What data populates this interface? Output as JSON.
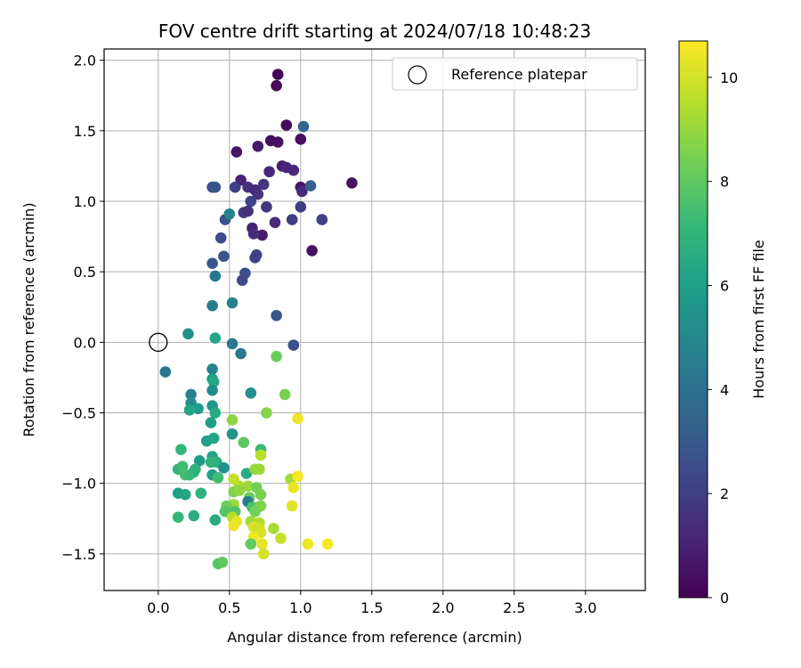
{
  "chart_data": {
    "type": "scatter",
    "title": "FOV centre drift starting at 2024/07/18 10:48:23",
    "xlabel": "Angular distance from reference (arcmin)",
    "ylabel": "Rotation from reference (arcmin)",
    "xlim": [
      -0.38,
      3.42
    ],
    "ylim": [
      -1.76,
      2.08
    ],
    "xticks": [
      0.0,
      0.5,
      1.0,
      1.5,
      2.0,
      2.5,
      3.0
    ],
    "xtick_labels": [
      "0.0",
      "0.5",
      "1.0",
      "1.5",
      "2.0",
      "2.5",
      "3.0"
    ],
    "yticks": [
      -1.5,
      -1.0,
      -0.5,
      0.0,
      0.5,
      1.0,
      1.5,
      2.0
    ],
    "ytick_labels": [
      "−1.5",
      "−1.0",
      "−0.5",
      "0.0",
      "0.5",
      "1.0",
      "1.5",
      "2.0"
    ],
    "grid": true,
    "legend": {
      "placement": "top-right",
      "entries": [
        "Reference platepar"
      ]
    },
    "reference_point": {
      "x": 0.0,
      "y": 0.0
    },
    "colorbar": {
      "label": "Hours from first FF file",
      "colormap": "viridis",
      "range": [
        0,
        10.7
      ],
      "ticks": [
        0,
        2,
        4,
        6,
        8,
        10
      ],
      "tick_labels": [
        "0",
        "2",
        "4",
        "6",
        "8",
        "10"
      ],
      "colors": [
        "#440154",
        "#482878",
        "#3e4989",
        "#31688e",
        "#26828e",
        "#1f9e89",
        "#35b779",
        "#6ece58",
        "#b5de2b",
        "#fde725"
      ]
    },
    "series": [
      {
        "points": [
          [
            0.84,
            1.9,
            0.1
          ],
          [
            0.83,
            1.82,
            0.2
          ],
          [
            0.9,
            1.54,
            0.3
          ],
          [
            1.0,
            1.44,
            0.4
          ],
          [
            0.79,
            1.43,
            0.3
          ],
          [
            0.84,
            1.42,
            0.5
          ],
          [
            0.7,
            1.39,
            0.8
          ],
          [
            0.55,
            1.35,
            0.6
          ],
          [
            0.87,
            1.25,
            0.9
          ],
          [
            0.9,
            1.24,
            1.1
          ],
          [
            0.95,
            1.22,
            1.3
          ],
          [
            0.78,
            1.21,
            1.2
          ],
          [
            1.36,
            1.13,
            0.5
          ],
          [
            0.58,
            1.15,
            1.0
          ],
          [
            0.74,
            1.12,
            1.7
          ],
          [
            1.0,
            1.1,
            0.6
          ],
          [
            0.63,
            1.1,
            1.4
          ],
          [
            0.68,
            1.08,
            1.2
          ],
          [
            0.54,
            1.1,
            2.0
          ],
          [
            0.38,
            1.1,
            2.5
          ],
          [
            0.4,
            1.1,
            2.8
          ],
          [
            1.01,
            1.07,
            1.3
          ],
          [
            0.7,
            1.05,
            1.6
          ],
          [
            0.76,
            0.96,
            1.7
          ],
          [
            1.0,
            0.96,
            2.0
          ],
          [
            0.65,
            1.0,
            2.2
          ],
          [
            0.6,
            0.92,
            1.8
          ],
          [
            0.63,
            0.93,
            1.5
          ],
          [
            0.94,
            0.87,
            1.9
          ],
          [
            1.15,
            0.87,
            2.1
          ],
          [
            0.82,
            0.85,
            1.3
          ],
          [
            0.66,
            0.81,
            1.0
          ],
          [
            0.73,
            0.76,
            0.8
          ],
          [
            0.67,
            0.77,
            1.4
          ],
          [
            1.08,
            0.65,
            0.5
          ],
          [
            0.69,
            0.62,
            2.2
          ],
          [
            0.68,
            0.6,
            2.1
          ],
          [
            0.61,
            0.49,
            2.6
          ],
          [
            0.59,
            0.44,
            2.4
          ],
          [
            0.46,
            0.61,
            2.8
          ],
          [
            0.44,
            0.74,
            2.5
          ],
          [
            0.38,
            0.56,
            2.9
          ],
          [
            0.47,
            0.87,
            2.7
          ],
          [
            0.5,
            0.91,
            4.8
          ],
          [
            1.02,
            1.53,
            3.5
          ],
          [
            1.07,
            1.11,
            3.3
          ],
          [
            0.83,
            0.19,
            2.9
          ],
          [
            0.4,
            0.47,
            4.2
          ],
          [
            0.38,
            0.26,
            4.5
          ],
          [
            0.52,
            0.28,
            4.8
          ],
          [
            0.95,
            -0.02,
            2.6
          ],
          [
            0.52,
            -0.01,
            4.4
          ],
          [
            0.58,
            -0.08,
            4.3
          ],
          [
            0.4,
            0.03,
            6.3
          ],
          [
            0.21,
            0.06,
            5.4
          ],
          [
            0.05,
            -0.21,
            4.3
          ],
          [
            0.38,
            -0.19,
            4.8
          ],
          [
            0.38,
            -0.26,
            6.0
          ],
          [
            0.39,
            -0.28,
            6.4
          ],
          [
            0.38,
            -0.34,
            5.2
          ],
          [
            0.23,
            -0.37,
            4.7
          ],
          [
            0.23,
            -0.43,
            5.2
          ],
          [
            0.38,
            -0.45,
            5.6
          ],
          [
            0.28,
            -0.47,
            5.9
          ],
          [
            0.22,
            -0.48,
            6.3
          ],
          [
            0.4,
            -0.5,
            6.5
          ],
          [
            0.65,
            -0.36,
            5.3
          ],
          [
            0.83,
            -0.1,
            8.2
          ],
          [
            0.89,
            -0.37,
            8.5
          ],
          [
            0.76,
            -0.5,
            8.7
          ],
          [
            0.52,
            -0.55,
            8.8
          ],
          [
            0.98,
            -0.54,
            10.4
          ],
          [
            0.37,
            -0.57,
            6.0
          ],
          [
            0.52,
            -0.65,
            5.5
          ],
          [
            0.34,
            -0.7,
            6.0
          ],
          [
            0.39,
            -0.68,
            6.3
          ],
          [
            0.6,
            -0.71,
            8.0
          ],
          [
            0.72,
            -0.76,
            7.3
          ],
          [
            0.16,
            -0.76,
            7.1
          ],
          [
            0.38,
            -0.81,
            6.2
          ],
          [
            0.41,
            -0.85,
            6.8
          ],
          [
            0.37,
            -0.85,
            6.9
          ],
          [
            0.29,
            -0.84,
            5.8
          ],
          [
            0.46,
            -0.89,
            5.4
          ],
          [
            0.72,
            -0.8,
            9.6
          ],
          [
            0.14,
            -0.9,
            7.0
          ],
          [
            0.17,
            -0.88,
            7.3
          ],
          [
            0.19,
            -0.94,
            7.5
          ],
          [
            0.25,
            -0.92,
            6.7
          ],
          [
            0.22,
            -0.94,
            7.2
          ],
          [
            0.26,
            -0.9,
            6.9
          ],
          [
            0.38,
            -0.94,
            6.0
          ],
          [
            0.42,
            -0.96,
            7.4
          ],
          [
            0.62,
            -0.93,
            6.6
          ],
          [
            0.68,
            -0.9,
            9.0
          ],
          [
            0.71,
            -0.9,
            9.1
          ],
          [
            0.93,
            -0.97,
            9.2
          ],
          [
            0.98,
            -0.95,
            10.6
          ],
          [
            0.95,
            -1.03,
            10.4
          ],
          [
            0.53,
            -0.97,
            9.8
          ],
          [
            0.57,
            -1.02,
            9.4
          ],
          [
            0.63,
            -1.02,
            9.1
          ],
          [
            0.69,
            -1.03,
            8.4
          ],
          [
            0.14,
            -1.07,
            6.0
          ],
          [
            0.19,
            -1.08,
            6.3
          ],
          [
            0.3,
            -1.07,
            6.8
          ],
          [
            0.53,
            -1.06,
            8.6
          ],
          [
            0.57,
            -1.05,
            8.9
          ],
          [
            0.64,
            -1.1,
            8.2
          ],
          [
            0.72,
            -1.08,
            8.5
          ],
          [
            0.63,
            -1.13,
            4.5
          ],
          [
            0.53,
            -1.15,
            9.1
          ],
          [
            0.48,
            -1.16,
            8.3
          ],
          [
            0.66,
            -1.17,
            7.6
          ],
          [
            0.7,
            -1.17,
            7.8
          ],
          [
            0.72,
            -1.16,
            8.6
          ],
          [
            0.94,
            -1.16,
            10.2
          ],
          [
            0.47,
            -1.2,
            7.8
          ],
          [
            0.54,
            -1.2,
            7.7
          ],
          [
            0.68,
            -1.2,
            8.4
          ],
          [
            0.14,
            -1.24,
            7.1
          ],
          [
            0.25,
            -1.23,
            6.6
          ],
          [
            0.4,
            -1.26,
            6.5
          ],
          [
            0.52,
            -1.24,
            9.5
          ],
          [
            0.55,
            -1.27,
            10.3
          ],
          [
            0.65,
            -1.27,
            9.2
          ],
          [
            0.71,
            -1.28,
            9.5
          ],
          [
            0.53,
            -1.3,
            10.4
          ],
          [
            0.67,
            -1.31,
            10.1
          ],
          [
            0.71,
            -1.32,
            9.9
          ],
          [
            0.81,
            -1.32,
            9.3
          ],
          [
            0.72,
            -1.35,
            10.0
          ],
          [
            0.67,
            -1.38,
            10.5
          ],
          [
            0.65,
            -1.43,
            8.1
          ],
          [
            0.73,
            -1.43,
            10.3
          ],
          [
            0.86,
            -1.39,
            9.8
          ],
          [
            1.05,
            -1.43,
            10.5
          ],
          [
            1.19,
            -1.43,
            10.6
          ],
          [
            0.74,
            -1.5,
            10.0
          ],
          [
            0.42,
            -1.57,
            7.8
          ],
          [
            0.45,
            -1.56,
            8.0
          ]
        ]
      }
    ]
  }
}
